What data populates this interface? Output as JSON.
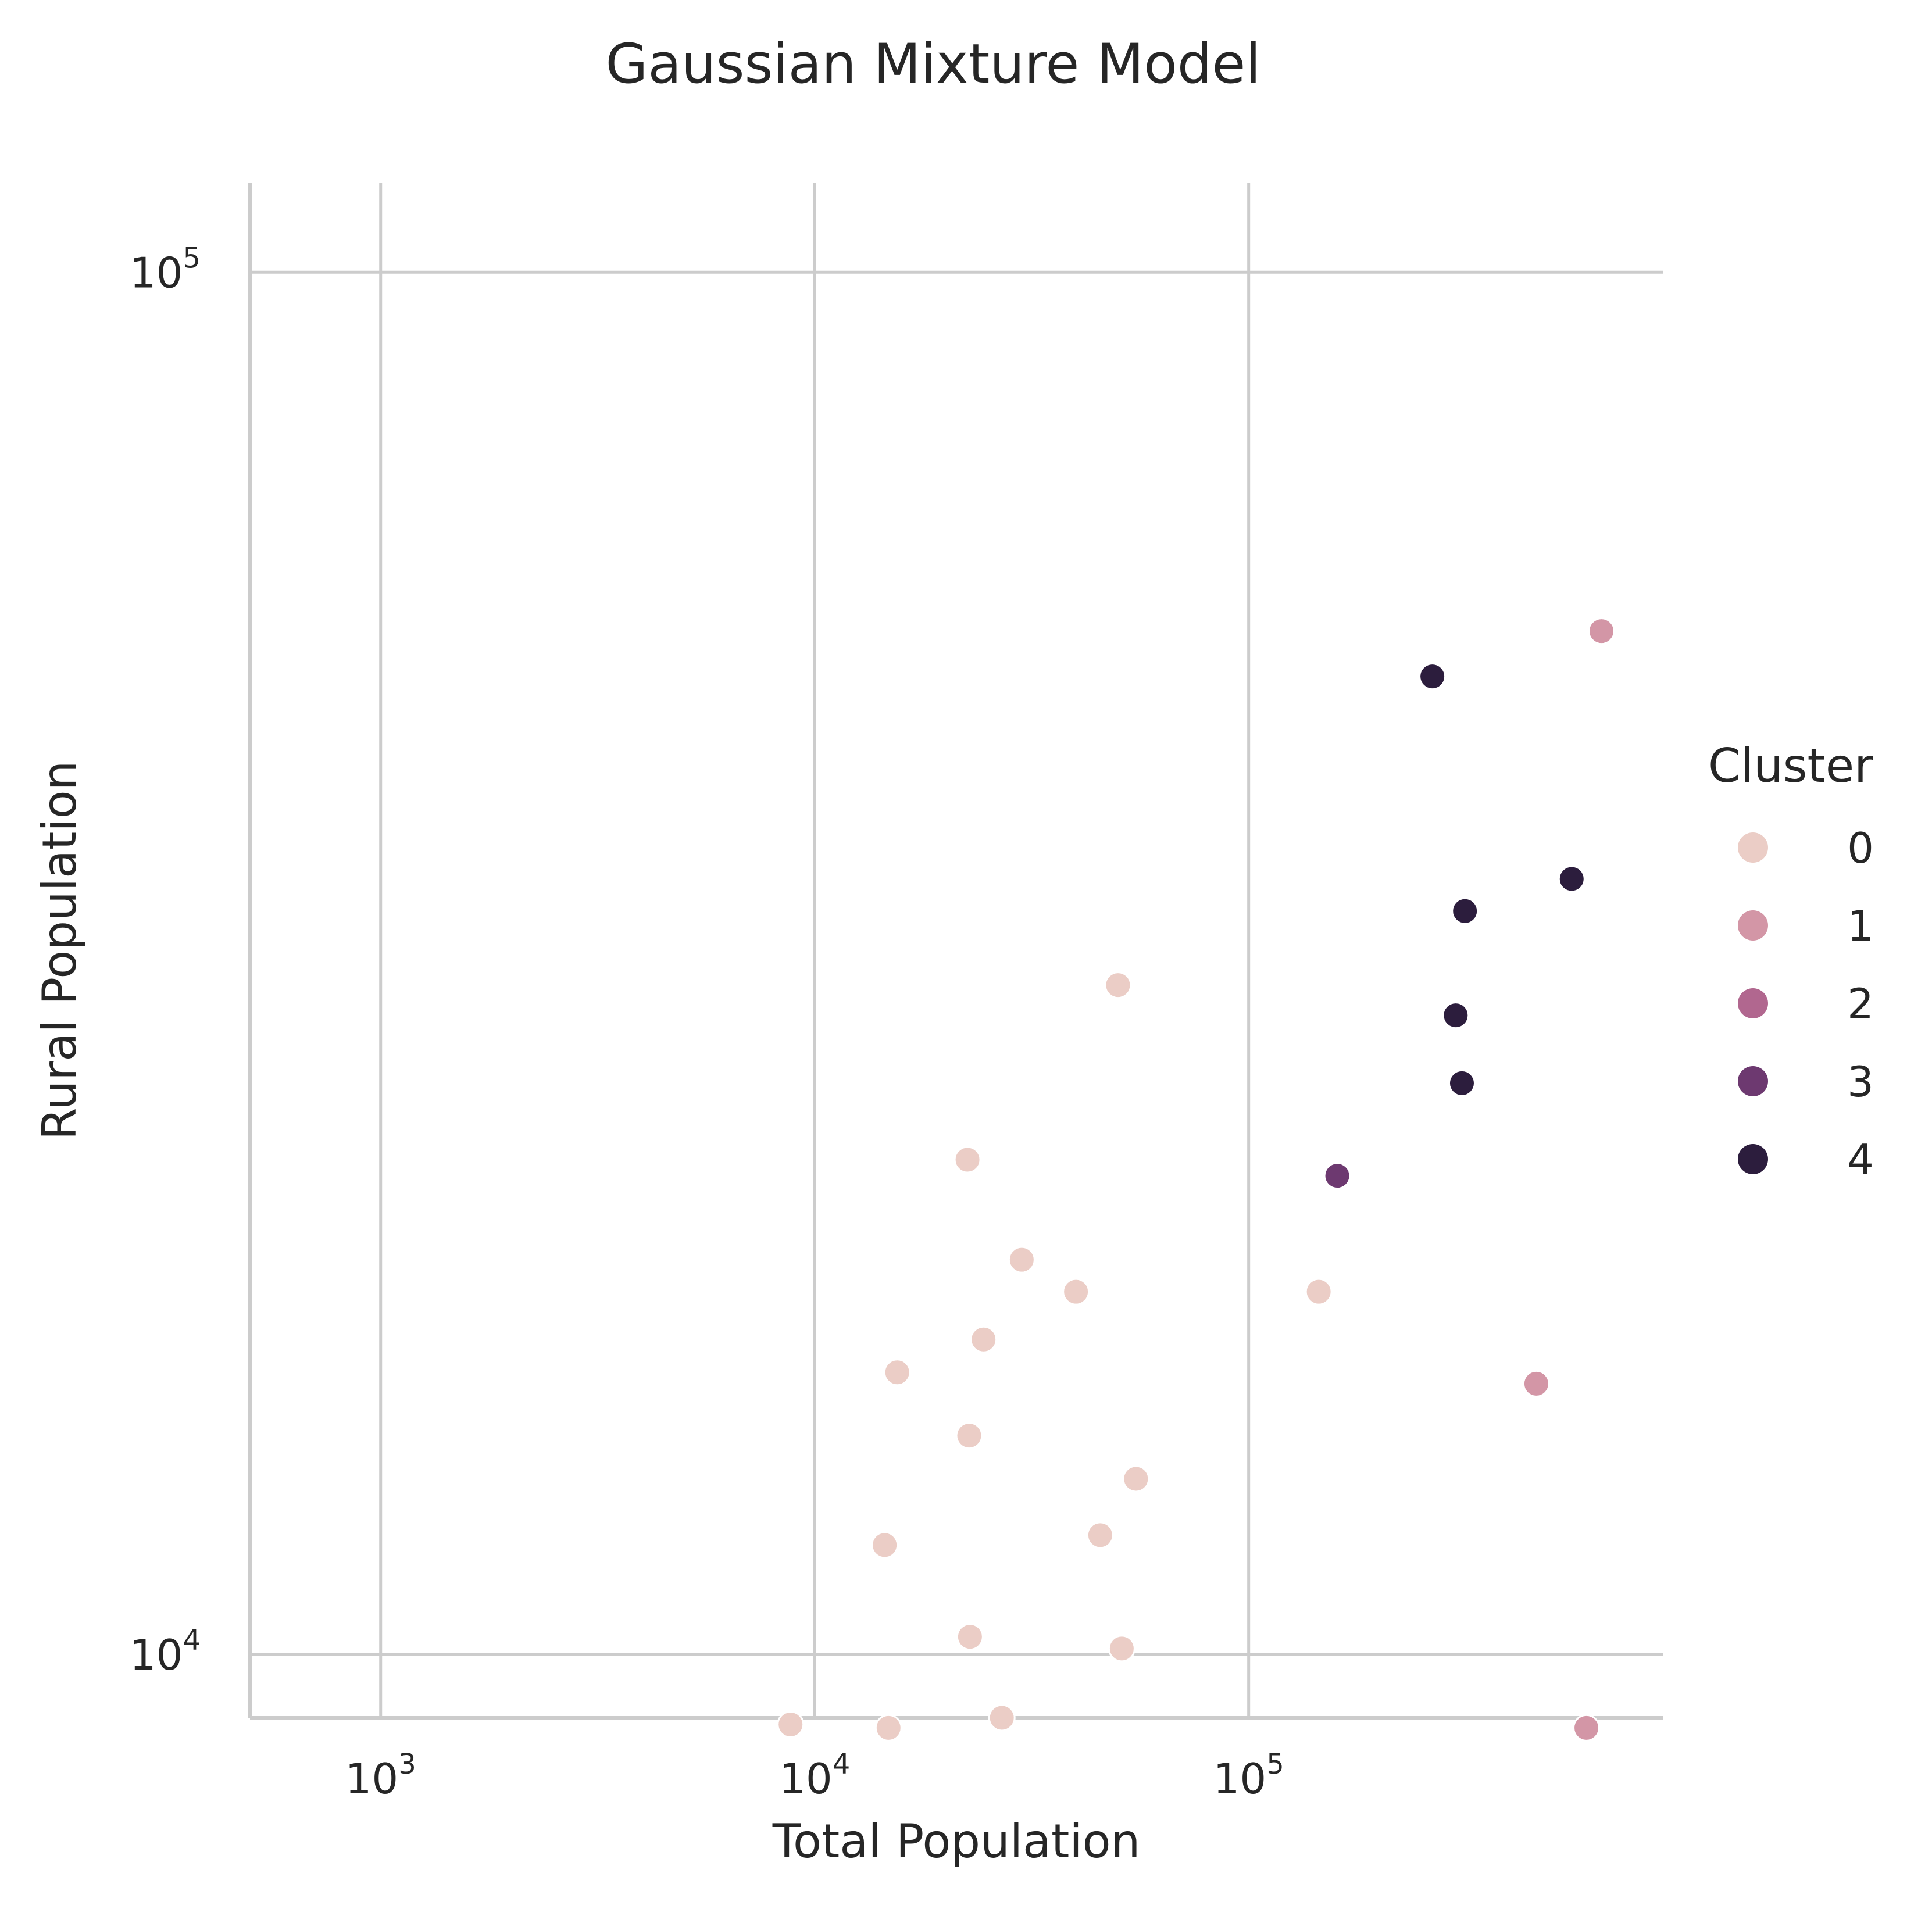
{
  "chart_data": {
    "type": "scatter",
    "title": "Gaussian Mixture Model",
    "xlabel": "Total Population",
    "ylabel": "Rural Population",
    "xscale": "log",
    "yscale": "log",
    "xlim": [
      500,
      900000
    ],
    "ylim": [
      9000,
      116000
    ],
    "grid": true,
    "x_ticks": [
      {
        "value": 1000,
        "base": "10",
        "exp": "3"
      },
      {
        "value": 10000,
        "base": "10",
        "exp": "4"
      },
      {
        "value": 100000,
        "base": "10",
        "exp": "5"
      }
    ],
    "y_ticks": [
      {
        "value": 10000,
        "base": "10",
        "exp": "4"
      },
      {
        "value": 100000,
        "base": "10",
        "exp": "5"
      }
    ],
    "legend": {
      "title": "Cluster",
      "placement": "center-right",
      "entries": [
        {
          "label": "0",
          "color": "#ebcdc6"
        },
        {
          "label": "1",
          "color": "#d396a6"
        },
        {
          "label": "2",
          "color": "#b1678f"
        },
        {
          "label": "3",
          "color": "#6d3970"
        },
        {
          "label": "4",
          "color": "#2c1d3d"
        }
      ]
    },
    "series": [
      {
        "name": "0",
        "points": [
          {
            "x": 50000,
            "y": 30500
          },
          {
            "x": 22500,
            "y": 22800
          },
          {
            "x": 30000,
            "y": 19300
          },
          {
            "x": 40000,
            "y": 18300
          },
          {
            "x": 145000,
            "y": 18300
          },
          {
            "x": 24500,
            "y": 16900
          },
          {
            "x": 15500,
            "y": 16000
          },
          {
            "x": 22700,
            "y": 14400
          },
          {
            "x": 55000,
            "y": 13400
          },
          {
            "x": 45500,
            "y": 12200
          },
          {
            "x": 14500,
            "y": 12000
          },
          {
            "x": 22800,
            "y": 10300
          },
          {
            "x": 51000,
            "y": 10100
          },
          {
            "x": 8800,
            "y": 8900
          },
          {
            "x": 14800,
            "y": 8850
          },
          {
            "x": 27000,
            "y": 9000
          }
        ]
      },
      {
        "name": "1",
        "points": [
          {
            "x": 650000,
            "y": 55000
          },
          {
            "x": 460000,
            "y": 15700
          },
          {
            "x": 600000,
            "y": 8850
          }
        ]
      },
      {
        "name": "2",
        "points": []
      },
      {
        "name": "3",
        "points": [
          {
            "x": 160000,
            "y": 22200
          }
        ]
      },
      {
        "name": "4",
        "points": [
          {
            "x": 265000,
            "y": 51000
          },
          {
            "x": 555000,
            "y": 36400
          },
          {
            "x": 315000,
            "y": 34500
          },
          {
            "x": 300000,
            "y": 29000
          },
          {
            "x": 310000,
            "y": 25900
          }
        ]
      }
    ]
  }
}
